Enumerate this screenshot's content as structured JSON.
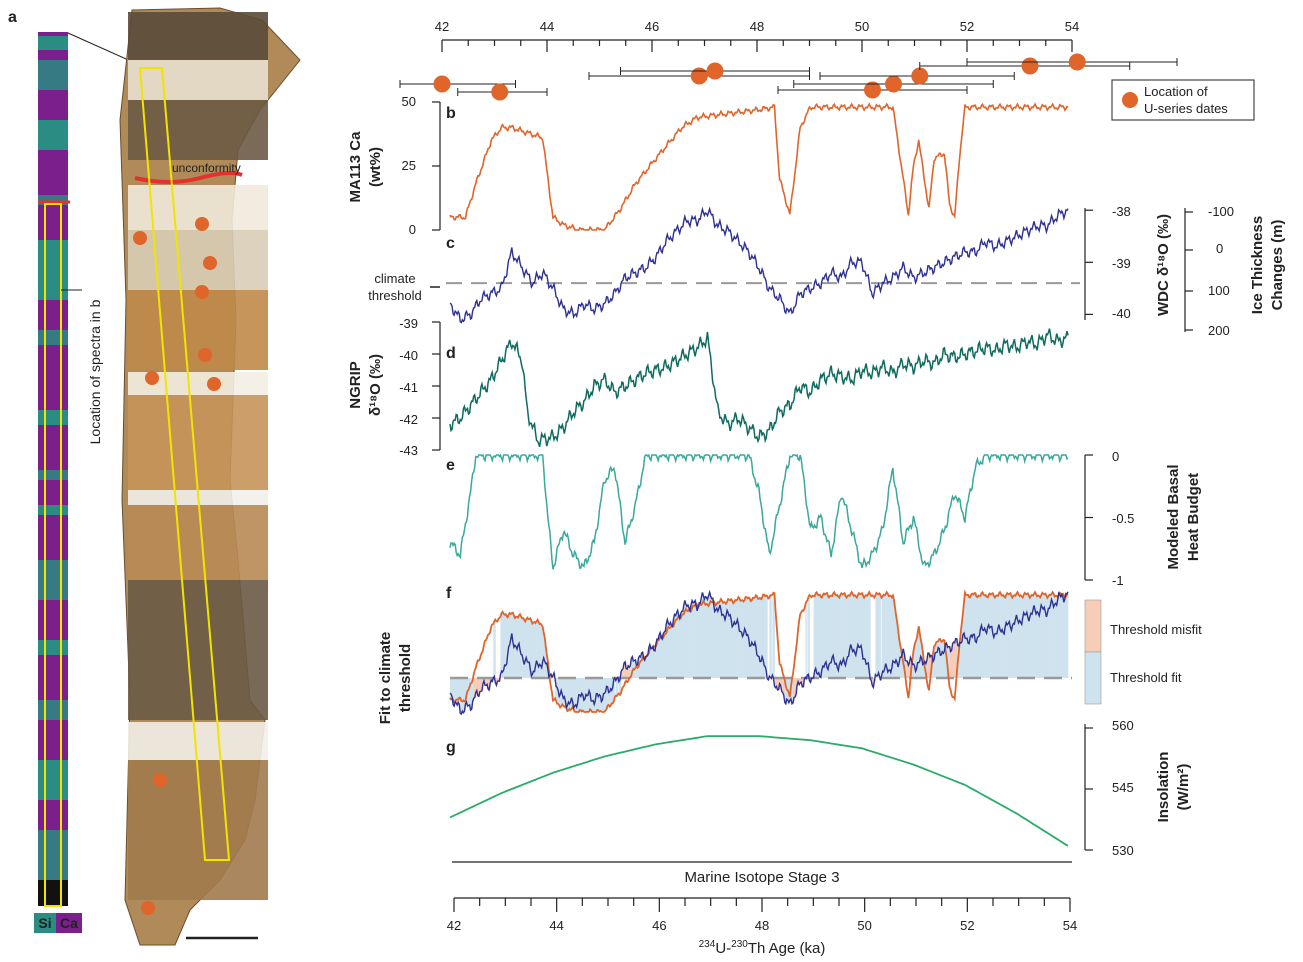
{
  "panel_letters": {
    "a": "a",
    "b": "b",
    "c": "c",
    "d": "d",
    "e": "e",
    "f": "f",
    "g": "g"
  },
  "core_image": {
    "si_label": "Si",
    "ca_label": "Ca",
    "spectra_label": "Location of spectra in b",
    "unconformity_label": "unconformity",
    "colors": {
      "si": "#2a8c82",
      "ca": "#7a1f8c",
      "rock_light": "#d8b98a",
      "rock_dark": "#8a6a3c",
      "frame": "#f1e400",
      "date_marker": "#e0652b",
      "unconformity": "#e53030"
    }
  },
  "top_axis": {
    "ticks": [
      "42",
      "44",
      "46",
      "48",
      "50",
      "52",
      "54"
    ]
  },
  "bottom_axis": {
    "ticks": [
      "42",
      "44",
      "46",
      "48",
      "50",
      "52",
      "54"
    ],
    "xlabel_sup1": "234",
    "xlabel_mid": "U-",
    "xlabel_sup2": "230",
    "xlabel_end": "Th Age (ka)"
  },
  "legend": {
    "dates_line1": "Location of",
    "dates_line2": "U-series dates",
    "misfit": "Threshold misfit",
    "fit": "Threshold fit"
  },
  "labels": {
    "b_ylabel_1": "MA113 Ca",
    "b_ylabel_2": "(wt%)",
    "b_ticks": [
      "50",
      "25",
      "0"
    ],
    "c_ylabel_wdc": "WDC δ¹⁸O (‰)",
    "c_ylabel_ice_1": "Ice Thickness",
    "c_ylabel_ice_2": "Changes (m)",
    "c_ticks_wdc": [
      "-38",
      "-39",
      "-40"
    ],
    "c_ticks_ice": [
      "-100",
      "0",
      "100",
      "200"
    ],
    "climate_threshold_1": "climate",
    "climate_threshold_2": "threshold",
    "d_ylabel_1": "NGRIP",
    "d_ylabel_2": "δ¹⁸O (‰)",
    "d_ticks": [
      "-39",
      "-40",
      "-41",
      "-42",
      "-43"
    ],
    "e_ylabel_1": "Modeled Basal",
    "e_ylabel_2": "Heat Budget",
    "e_ticks": [
      "0",
      "-0.5",
      "-1"
    ],
    "f_ylabel_1": "Fit to climate",
    "f_ylabel_2": "threshold",
    "g_ylabel_1": "Insolation",
    "g_ylabel_2": "(W/m²)",
    "g_ticks": [
      "560",
      "545",
      "530"
    ],
    "mis_label": "Marine Isotope Stage 3"
  },
  "colors": {
    "ca": "#e0652b",
    "wdc": "#2e3192",
    "ngrip": "#0e6b5e",
    "heat": "#3aa89a",
    "insolation": "#2bab6a",
    "misfit": "#f7cdb8",
    "fit": "#cfe3ee",
    "threshold": "#999999"
  },
  "chart_data": {
    "type": "line",
    "x_axis": {
      "label": "234U-230Th Age (ka)",
      "range": [
        42,
        54
      ]
    },
    "useries_dates": [
      {
        "age": 42.0,
        "err_lo": 41.2,
        "err_hi": 43.4
      },
      {
        "age": 43.1,
        "err_lo": 42.3,
        "err_hi": 44.0
      },
      {
        "age": 46.9,
        "err_lo": 44.8,
        "err_hi": 49.0
      },
      {
        "age": 47.2,
        "err_lo": 45.4,
        "err_hi": 49.0
      },
      {
        "age": 50.2,
        "err_lo": 48.4,
        "err_hi": 52.0
      },
      {
        "age": 50.6,
        "err_lo": 48.7,
        "err_hi": 52.5
      },
      {
        "age": 51.1,
        "err_lo": 49.2,
        "err_hi": 52.9
      },
      {
        "age": 53.2,
        "err_lo": 51.1,
        "err_hi": 55.1
      },
      {
        "age": 54.1,
        "err_lo": 52.0,
        "err_hi": 56.0
      }
    ],
    "series": [
      {
        "name": "MA113 Ca",
        "unit": "wt%",
        "ylim": [
          0,
          50
        ],
        "x": [
          42.0,
          42.3,
          42.5,
          42.8,
          43.0,
          43.2,
          43.5,
          43.8,
          43.9,
          44.0,
          44.2,
          44.5,
          45.0,
          45.3,
          45.6,
          46.0,
          46.5,
          46.8,
          47.2,
          47.6,
          48.0,
          48.3,
          48.4,
          48.6,
          48.8,
          49.0,
          49.5,
          50.0,
          50.6,
          50.8,
          50.9,
          51.0,
          51.1,
          51.3,
          51.4,
          51.6,
          51.7,
          51.8,
          51.9,
          52.0,
          52.4,
          53.0,
          54.0
        ],
        "y": [
          5,
          5,
          18,
          35,
          40,
          40,
          38,
          36,
          20,
          5,
          2,
          0,
          0,
          8,
          18,
          28,
          40,
          44,
          45,
          46,
          47,
          48,
          20,
          6,
          40,
          48,
          48,
          48,
          48,
          20,
          6,
          25,
          35,
          8,
          28,
          30,
          10,
          5,
          30,
          48,
          48,
          48,
          48
        ]
      },
      {
        "name": "WDC δ18O",
        "unit": "‰",
        "ylim": [
          -40.3,
          -37.9
        ],
        "x": [
          42.0,
          42.2,
          42.4,
          42.6,
          42.8,
          43.0,
          43.2,
          43.4,
          43.6,
          43.8,
          44.0,
          44.2,
          44.4,
          44.6,
          44.8,
          45.0,
          45.2,
          45.4,
          45.6,
          45.8,
          46.0,
          46.2,
          46.4,
          46.6,
          46.8,
          47.0,
          47.2,
          47.4,
          47.6,
          47.8,
          48.0,
          48.2,
          48.4,
          48.6,
          48.8,
          49.0,
          49.2,
          49.4,
          49.6,
          49.8,
          50.0,
          50.2,
          50.4,
          50.6,
          50.8,
          51.0,
          51.2,
          51.4,
          51.6,
          51.8,
          52.0,
          52.2,
          52.4,
          52.6,
          52.8,
          53.0,
          53.2,
          53.4,
          53.6,
          53.8,
          54.0
        ],
        "y": [
          -39.8,
          -40.1,
          -40.0,
          -39.7,
          -39.6,
          -39.5,
          -38.8,
          -39.1,
          -39.4,
          -39.2,
          -39.5,
          -39.9,
          -40.0,
          -39.8,
          -39.9,
          -39.8,
          -39.6,
          -39.3,
          -39.2,
          -39.1,
          -38.9,
          -38.6,
          -38.4,
          -38.2,
          -38.2,
          -38.0,
          -38.3,
          -38.4,
          -38.6,
          -38.8,
          -39.1,
          -39.5,
          -39.7,
          -40.0,
          -39.6,
          -39.5,
          -39.4,
          -39.2,
          -39.3,
          -39.0,
          -39.0,
          -39.6,
          -39.4,
          -39.3,
          -39.1,
          -39.3,
          -39.2,
          -39.1,
          -39.0,
          -38.9,
          -38.8,
          -38.8,
          -38.6,
          -38.7,
          -38.6,
          -38.5,
          -38.4,
          -38.3,
          -38.3,
          -38.1,
          -38.0
        ]
      },
      {
        "name": "NGRIP δ18O",
        "unit": "‰",
        "ylim": [
          -43,
          -39
        ],
        "x": [
          42.0,
          42.2,
          42.4,
          42.6,
          42.8,
          43.0,
          43.2,
          43.4,
          43.5,
          43.7,
          44.0,
          44.2,
          44.4,
          44.6,
          44.8,
          45.0,
          45.2,
          45.4,
          45.6,
          45.8,
          46.0,
          46.2,
          46.4,
          46.6,
          46.8,
          47.0,
          47.2,
          47.4,
          47.6,
          47.8,
          48.0,
          48.2,
          48.4,
          48.6,
          48.8,
          49.0,
          49.2,
          49.4,
          49.6,
          49.8,
          50.0,
          50.2,
          50.4,
          50.6,
          50.8,
          51.0,
          51.2,
          51.4,
          51.6,
          51.8,
          52.0,
          52.2,
          52.4,
          52.6,
          52.8,
          53.0,
          53.2,
          53.4,
          53.6,
          53.8,
          54.0
        ],
        "y": [
          -42.2,
          -42.0,
          -41.6,
          -41.2,
          -40.8,
          -40.2,
          -39.6,
          -40.2,
          -41.8,
          -42.7,
          -42.6,
          -42.3,
          -41.8,
          -41.5,
          -41.0,
          -40.8,
          -41.2,
          -41.0,
          -40.8,
          -40.6,
          -40.5,
          -40.4,
          -40.2,
          -40.0,
          -39.8,
          -39.5,
          -41.8,
          -42.2,
          -42.0,
          -42.3,
          -42.6,
          -42.4,
          -41.8,
          -41.6,
          -41.0,
          -41.2,
          -40.8,
          -40.6,
          -40.7,
          -40.8,
          -40.5,
          -40.6,
          -40.4,
          -40.6,
          -40.3,
          -40.4,
          -40.2,
          -40.3,
          -40.0,
          -40.1,
          -40.0,
          -39.9,
          -39.8,
          -39.9,
          -39.7,
          -39.8,
          -39.6,
          -39.7,
          -39.4,
          -39.6,
          -39.5
        ]
      },
      {
        "name": "Modeled Basal Heat Budget",
        "ylim": [
          -1,
          0
        ],
        "x": [
          42.0,
          42.2,
          42.4,
          42.5,
          42.6,
          42.8,
          43.0,
          43.2,
          43.4,
          43.6,
          43.8,
          43.9,
          44.0,
          44.2,
          44.4,
          44.6,
          44.8,
          45.0,
          45.2,
          45.4,
          45.6,
          45.8,
          46.0,
          46.5,
          47.0,
          47.2,
          47.5,
          47.8,
          48.0,
          48.2,
          48.4,
          48.6,
          48.8,
          49.0,
          49.2,
          49.4,
          49.6,
          49.8,
          50.0,
          50.2,
          50.4,
          50.6,
          50.8,
          51.0,
          51.2,
          51.4,
          51.6,
          51.8,
          52.0,
          52.2,
          52.4,
          53.0,
          54.0
        ],
        "y": [
          -0.7,
          -0.8,
          -0.3,
          0,
          0,
          0,
          0,
          0,
          0,
          0,
          0,
          -0.5,
          -0.9,
          -0.6,
          -0.8,
          -0.9,
          -0.7,
          -0.2,
          -0.1,
          -0.7,
          -0.4,
          0,
          0,
          0,
          0,
          0,
          0,
          0,
          -0.3,
          -0.8,
          -0.4,
          0,
          0,
          -0.6,
          -0.5,
          -0.8,
          -0.3,
          -0.6,
          -0.9,
          -0.8,
          -0.6,
          -0.1,
          -0.7,
          -0.5,
          -0.9,
          -0.8,
          -0.6,
          -0.3,
          -0.5,
          -0.1,
          0,
          0,
          0
        ]
      },
      {
        "name": "Insolation",
        "unit": "W/m2",
        "ylim": [
          530,
          560
        ],
        "x": [
          42,
          43,
          44,
          45,
          46,
          47,
          48,
          49,
          50,
          51,
          52,
          53,
          54
        ],
        "y": [
          538,
          544,
          549,
          553,
          556,
          558,
          558,
          557,
          555,
          551,
          546,
          539,
          531
        ]
      }
    ],
    "climate_threshold": {
      "wdc_value": -39.4
    }
  }
}
